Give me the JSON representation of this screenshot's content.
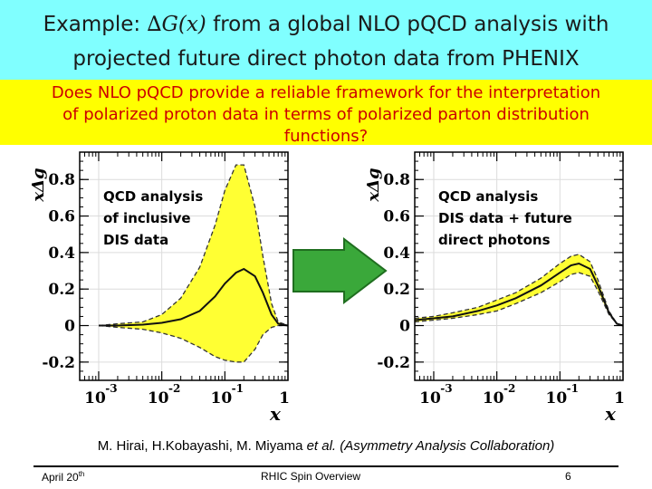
{
  "slide": {
    "title_prefix": "Example: ",
    "title_symbol": "∆G(x)",
    "title_rest": " from a global NLO pQCD analysis with",
    "title_line2": "projected future direct photon data from PHENIX",
    "question_line1": "Does NLO pQCD provide a reliable framework for the interpretation",
    "question_line2": "of polarized proton data in terms of polarized parton distribution",
    "question_line3": "functions?",
    "credit_prefix": "M. Hirai, H.Kobayashi, M. Miyama ",
    "credit_etal": "et al.",
    "credit_suffix": " (Asymmetry Analysis Collaboration)",
    "footer_left": "April 20",
    "footer_left_sup": "th",
    "footer_center": "RHIC Spin Overview",
    "footer_right": "6"
  },
  "colors": {
    "title_bg": "#80ffff",
    "banner_bg": "#ffff00",
    "banner_text": "#cc0000",
    "band_fill": "#ffff33",
    "arrow": "#3aa83a"
  },
  "arrow_icon": "right-arrow-icon",
  "chart_data": [
    {
      "type": "line",
      "annotation": [
        "QCD analysis",
        "of inclusive",
        "DIS data"
      ],
      "xlabel": "x",
      "ylabel": "xΔg",
      "xscale": "log",
      "xlim": [
        0.0005,
        1
      ],
      "ylim": [
        -0.3,
        0.95
      ],
      "yticks": [
        -0.2,
        0,
        0.2,
        0.4,
        0.6,
        0.8
      ],
      "ytick_labels": [
        "-0.2",
        "0",
        "0.2",
        "0.4",
        "0.6",
        "0.8"
      ],
      "xticks": [
        0.001,
        0.01,
        0.1,
        1
      ],
      "xtick_labels": [
        {
          "base": "10",
          "exp": "-3"
        },
        {
          "base": "10",
          "exp": "-2"
        },
        {
          "base": "10",
          "exp": "-1"
        },
        {
          "base": "1",
          "exp": ""
        }
      ],
      "x": [
        0.001,
        0.002,
        0.005,
        0.01,
        0.02,
        0.04,
        0.07,
        0.1,
        0.15,
        0.2,
        0.3,
        0.4,
        0.55,
        0.7,
        1.0
      ],
      "central": [
        0.0,
        0.0,
        0.005,
        0.015,
        0.035,
        0.08,
        0.16,
        0.23,
        0.29,
        0.31,
        0.27,
        0.18,
        0.06,
        0.01,
        0.0
      ],
      "band_upper": [
        0.0,
        0.01,
        0.02,
        0.06,
        0.15,
        0.32,
        0.55,
        0.74,
        0.88,
        0.88,
        0.65,
        0.38,
        0.12,
        0.02,
        0.0
      ],
      "band_lower": [
        0.0,
        -0.01,
        -0.02,
        -0.04,
        -0.07,
        -0.12,
        -0.17,
        -0.19,
        -0.2,
        -0.2,
        -0.13,
        -0.05,
        -0.01,
        0.0,
        0.0
      ]
    },
    {
      "type": "line",
      "annotation": [
        "QCD analysis",
        "DIS data + future",
        "direct photons"
      ],
      "xlabel": "x",
      "ylabel": "xΔg",
      "xscale": "log",
      "xlim": [
        0.0005,
        1
      ],
      "ylim": [
        -0.3,
        0.95
      ],
      "yticks": [
        -0.2,
        0,
        0.2,
        0.4,
        0.6,
        0.8
      ],
      "ytick_labels": [
        "-0.2",
        "0",
        "0.2",
        "0.4",
        "0.6",
        "0.8"
      ],
      "xticks": [
        0.001,
        0.01,
        0.1,
        1
      ],
      "xtick_labels": [
        {
          "base": "10",
          "exp": "-3"
        },
        {
          "base": "10",
          "exp": "-2"
        },
        {
          "base": "10",
          "exp": "-1"
        },
        {
          "base": "1",
          "exp": ""
        }
      ],
      "x": [
        0.0005,
        0.001,
        0.002,
        0.005,
        0.01,
        0.02,
        0.05,
        0.1,
        0.15,
        0.2,
        0.3,
        0.4,
        0.6,
        0.8,
        1.0
      ],
      "central": [
        0.03,
        0.04,
        0.05,
        0.08,
        0.11,
        0.15,
        0.22,
        0.29,
        0.33,
        0.34,
        0.31,
        0.22,
        0.07,
        0.01,
        0.0
      ],
      "band_upper": [
        0.04,
        0.05,
        0.07,
        0.1,
        0.14,
        0.18,
        0.26,
        0.34,
        0.38,
        0.39,
        0.35,
        0.25,
        0.08,
        0.01,
        0.0
      ],
      "band_lower": [
        0.02,
        0.03,
        0.04,
        0.06,
        0.08,
        0.12,
        0.18,
        0.24,
        0.28,
        0.29,
        0.27,
        0.19,
        0.06,
        0.01,
        0.0
      ]
    }
  ]
}
